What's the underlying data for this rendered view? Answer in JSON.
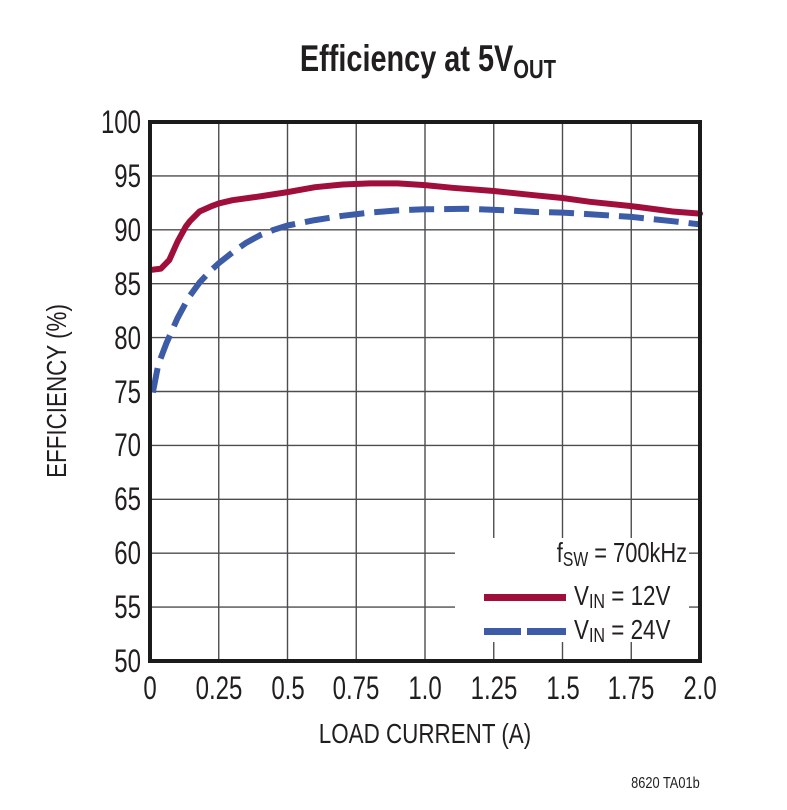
{
  "title": {
    "main": "Efficiency at 5V",
    "sub": "OUT"
  },
  "footnote": "8620 TA01b",
  "colors": {
    "curve_red": "#A00F3C",
    "curve_blue": "#3C5CA8",
    "grid": "#4D4D50",
    "axis": "#1B1B1B",
    "text": "#211E1F",
    "background": "#FFFFFF"
  },
  "chart_data": {
    "type": "line",
    "title": "Efficiency at 5VOUT",
    "xlabel": "LOAD CURRENT (A)",
    "ylabel": "EFFICIENCY (%)",
    "xlim": [
      0,
      2.0
    ],
    "ylim": [
      50,
      100
    ],
    "x_ticks": [
      0,
      0.25,
      0.5,
      0.75,
      1.0,
      1.25,
      1.5,
      1.75,
      2.0
    ],
    "x_tick_labels": [
      "0",
      "0.25",
      "0.5",
      "0.75",
      "1.0",
      "1.25",
      "1.5",
      "1.75",
      "2.0"
    ],
    "y_ticks": [
      50,
      55,
      60,
      65,
      70,
      75,
      80,
      85,
      90,
      95,
      100
    ],
    "y_tick_labels": [
      "50",
      "55",
      "60",
      "65",
      "70",
      "75",
      "80",
      "85",
      "90",
      "95",
      "100"
    ],
    "grid": true,
    "legend_position": "bottom-right",
    "annotation": {
      "text": "fSW = 700kHz",
      "parts": [
        "f",
        "SW",
        " = 700kHz"
      ]
    },
    "series": [
      {
        "name": "VIN = 12V",
        "label_parts": [
          "V",
          "IN",
          " = 12V"
        ],
        "color": "#A00F3C",
        "style": "solid",
        "points": [
          [
            0.01,
            86.3
          ],
          [
            0.04,
            86.4
          ],
          [
            0.07,
            87.2
          ],
          [
            0.1,
            88.9
          ],
          [
            0.13,
            90.3
          ],
          [
            0.145,
            90.8
          ],
          [
            0.18,
            91.7
          ],
          [
            0.22,
            92.15
          ],
          [
            0.25,
            92.45
          ],
          [
            0.3,
            92.75
          ],
          [
            0.4,
            93.1
          ],
          [
            0.5,
            93.5
          ],
          [
            0.6,
            93.95
          ],
          [
            0.7,
            94.2
          ],
          [
            0.8,
            94.3
          ],
          [
            0.9,
            94.3
          ],
          [
            1.0,
            94.15
          ],
          [
            1.1,
            93.9
          ],
          [
            1.25,
            93.6
          ],
          [
            1.4,
            93.2
          ],
          [
            1.5,
            92.95
          ],
          [
            1.6,
            92.6
          ],
          [
            1.75,
            92.2
          ],
          [
            1.9,
            91.7
          ],
          [
            2.0,
            91.5
          ]
        ]
      },
      {
        "name": "VIN = 24V",
        "label_parts": [
          "V",
          "IN",
          " = 24V"
        ],
        "color": "#3C5CA8",
        "style": "dashed",
        "points": [
          [
            0.01,
            74.9
          ],
          [
            0.03,
            77.5
          ],
          [
            0.06,
            79.5
          ],
          [
            0.1,
            81.8
          ],
          [
            0.14,
            83.7
          ],
          [
            0.18,
            85.1
          ],
          [
            0.22,
            86.2
          ],
          [
            0.25,
            86.9
          ],
          [
            0.3,
            87.9
          ],
          [
            0.35,
            88.8
          ],
          [
            0.4,
            89.5
          ],
          [
            0.45,
            90.0
          ],
          [
            0.5,
            90.4
          ],
          [
            0.6,
            90.9
          ],
          [
            0.7,
            91.3
          ],
          [
            0.8,
            91.6
          ],
          [
            0.9,
            91.8
          ],
          [
            1.0,
            91.9
          ],
          [
            1.15,
            91.95
          ],
          [
            1.3,
            91.8
          ],
          [
            1.4,
            91.65
          ],
          [
            1.5,
            91.6
          ],
          [
            1.6,
            91.45
          ],
          [
            1.75,
            91.2
          ],
          [
            1.9,
            90.8
          ],
          [
            2.0,
            90.5
          ]
        ]
      }
    ]
  }
}
